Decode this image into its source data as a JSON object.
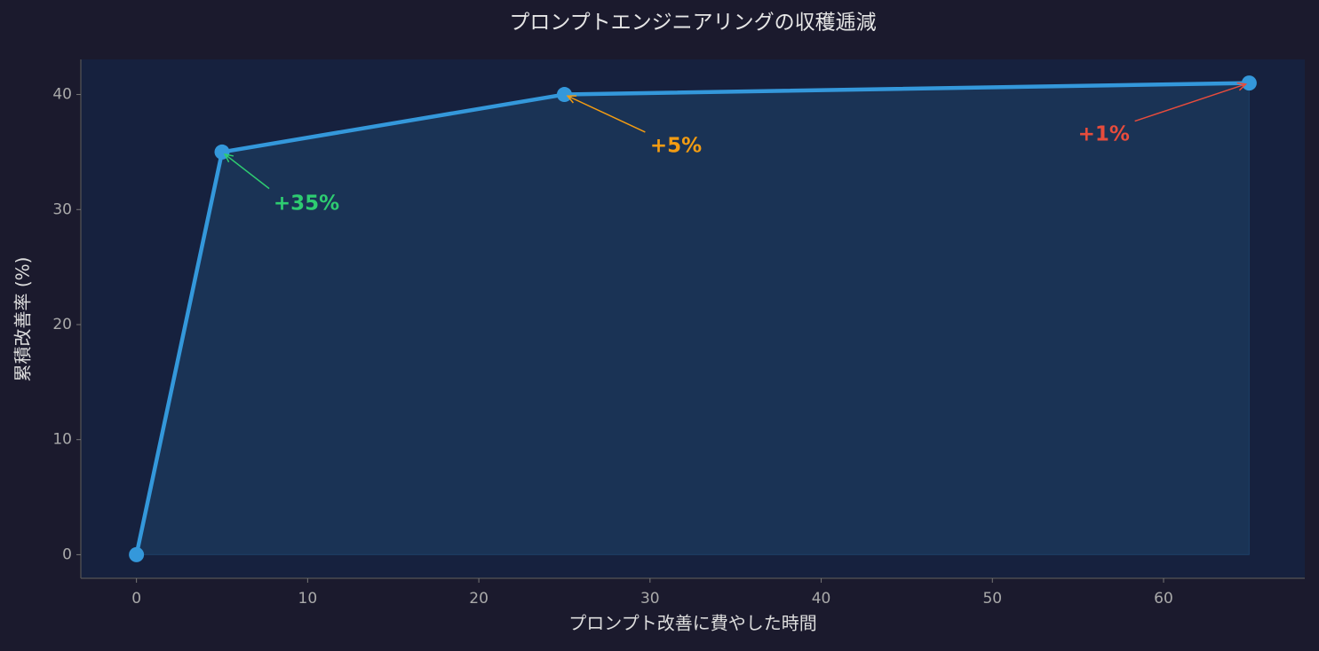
{
  "chart_data": {
    "type": "line",
    "title": "プロンプトエンジニアリングの収穫逓減",
    "x_label": "プロンプト改善に費やした時間",
    "y_label": "累積改善率 (%)",
    "x": [
      0,
      5,
      25,
      65
    ],
    "series": [
      {
        "color": "#3498db",
        "values": [
          0,
          35,
          40,
          41
        ]
      }
    ],
    "fill": true,
    "xlim": [
      -3.25,
      68.25
    ],
    "xticks": [
      0,
      10,
      20,
      30,
      40,
      50,
      60
    ],
    "ylim": [
      -2.05,
      43.05
    ],
    "yticks": [
      0,
      10,
      20,
      30,
      40
    ],
    "grid": false,
    "annotations": [
      {
        "text": "+35%",
        "xy": [
          5,
          35
        ],
        "xytext": [
          8,
          30
        ],
        "color": "#2ecc71"
      },
      {
        "text": "+5%",
        "xy": [
          25,
          40
        ],
        "xytext": [
          30,
          35
        ],
        "color": "#f39c12"
      },
      {
        "text": "+1%",
        "xy": [
          65,
          41
        ],
        "xytext": [
          55,
          36
        ],
        "color": "#e74c3c"
      }
    ]
  }
}
